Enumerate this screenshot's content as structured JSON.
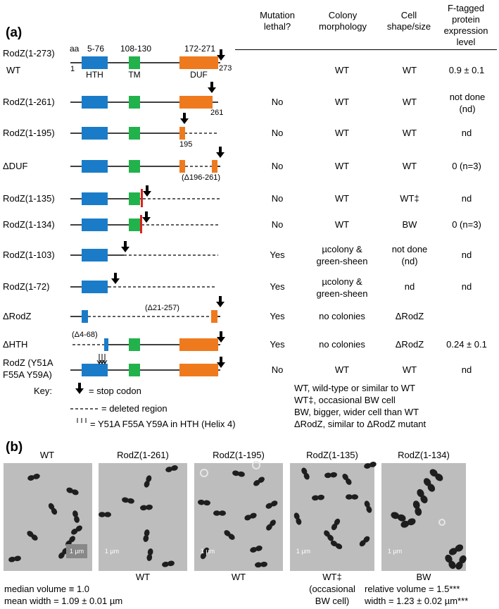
{
  "panel_a": {
    "label": "(a)",
    "headers": {
      "lethal": "Mutation lethal?",
      "colony": "Colony morphology",
      "shape": "Cell shape/size",
      "expr": "F-tagged protein expression level"
    },
    "domain_ranges": {
      "hth": "5-76",
      "tm": "108-130",
      "duf": "172-271"
    },
    "domain_names": {
      "hth": "HTH",
      "tm": "TM",
      "duf": "DUF"
    },
    "aa_label": "aa",
    "start_pos": "1",
    "end_pos": "273",
    "rows": [
      {
        "name": "RodZ(1-273)",
        "sub": "WT",
        "lethal": "",
        "colony": "WT",
        "shape": "WT",
        "expr": "0.9 ± 0.1"
      },
      {
        "name": "RodZ(1-261)",
        "lethal": "No",
        "colony": "WT",
        "shape": "WT",
        "expr": "not done (nd)",
        "note": "261"
      },
      {
        "name": "RodZ(1-195)",
        "lethal": "No",
        "colony": "WT",
        "shape": "WT",
        "expr": "nd",
        "note": "195"
      },
      {
        "name": "ΔDUF",
        "lethal": "No",
        "colony": "WT",
        "shape": "WT",
        "expr": "0 (n=3)",
        "note": "(Δ196-261)"
      },
      {
        "name": "RodZ(1-135)",
        "lethal": "No",
        "colony": "WT",
        "shape": "WT‡",
        "expr": "nd"
      },
      {
        "name": "RodZ(1-134)",
        "lethal": "No",
        "colony": "WT",
        "shape": "BW",
        "expr": "0 (n=3)"
      },
      {
        "name": "RodZ(1-103)",
        "lethal": "Yes",
        "colony": "µcolony & green-sheen",
        "shape": "not done (nd)",
        "expr": "nd"
      },
      {
        "name": "RodZ(1-72)",
        "lethal": "Yes",
        "colony": "µcolony & green-sheen",
        "shape": "nd",
        "expr": "nd"
      },
      {
        "name": "ΔRodZ",
        "lethal": "Yes",
        "colony": "no colonies",
        "shape": "ΔRodZ",
        "expr": "",
        "note": "(Δ21-257)"
      },
      {
        "name": "ΔHTH",
        "lethal": "Yes",
        "colony": "no colonies",
        "shape": "ΔRodZ",
        "expr": "0.24 ± 0.1",
        "note": "(Δ4-68)"
      },
      {
        "name": "RodZ (Y51A F55A Y59A)",
        "lethal": "No",
        "colony": "WT",
        "shape": "WT",
        "expr": "nd"
      }
    ],
    "key": {
      "title": "Key:",
      "stop": "= stop codon",
      "deleted": "= deleted region",
      "mut": "= Y51A F55A Y59A in HTH (Helix 4)"
    },
    "legend": [
      "WT, wild-type or similar to WT",
      "WT‡, occasional BW cell",
      "BW, bigger, wider cell than WT",
      "ΔRodZ, similar to ΔRodZ mutant"
    ]
  },
  "panel_b": {
    "label": "(b)",
    "scale": "1 µm",
    "images": [
      {
        "title": "WT",
        "under": ""
      },
      {
        "title": "RodZ(1-261)",
        "under": "WT"
      },
      {
        "title": "RodZ(1-195)",
        "under": "WT"
      },
      {
        "title": "RodZ(1-135)",
        "under": "WT‡",
        "under2": "(occasional",
        "under3": "BW cell)"
      },
      {
        "title": "RodZ(1-134)",
        "under": "BW"
      }
    ],
    "wt_stats": [
      "median volume ≡ 1.0",
      "mean width = 1.09 ± 0.01 µm"
    ],
    "bw_stats": [
      "relative volume = 1.5***",
      "width = 1.23 ± 0.02 µm***"
    ]
  },
  "colors": {
    "hth": "#1a7cc8",
    "tm": "#22b24c",
    "duf": "#ef7a1e",
    "cut": "#e02020",
    "micro_bg": "#bdbdbd"
  }
}
